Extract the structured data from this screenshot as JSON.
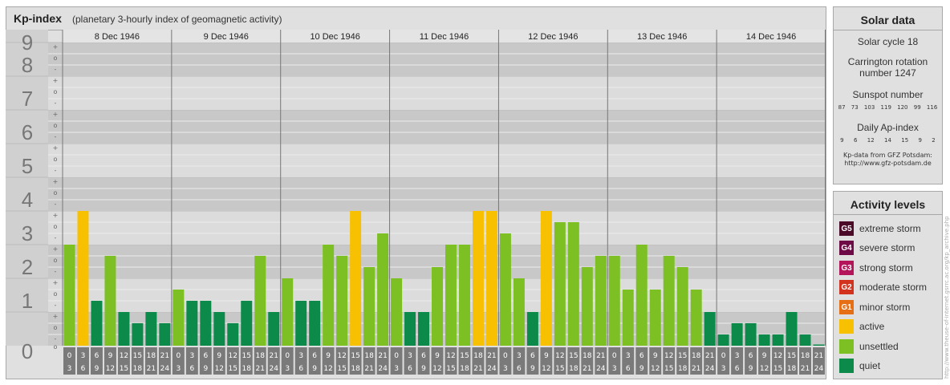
{
  "header": {
    "title": "Kp-index",
    "subtitle": "(planetary 3-hourly index of geomagnetic activity)"
  },
  "solar": {
    "title": "Solar data",
    "cycle": "Solar cycle 18",
    "carrington": "Carrington rotation number 1247",
    "sunspot_title": "Sunspot number",
    "sunspot_values": [
      "87",
      "73",
      "103",
      "119",
      "120",
      "99",
      "116"
    ],
    "ap_title": "Daily Ap-index",
    "ap_values": [
      "9",
      "6",
      "12",
      "14",
      "15",
      "9",
      "2"
    ],
    "source_line1": "Kp-data from GFZ Potsdam:",
    "source_line2": "http://www.gfz-potsdam.de"
  },
  "levels": {
    "title": "Activity levels",
    "items": [
      {
        "badge": "G5",
        "label": "extreme storm",
        "color": "#4b0a28"
      },
      {
        "badge": "G4",
        "label": "severe storm",
        "color": "#6e0a46"
      },
      {
        "badge": "G3",
        "label": "strong storm",
        "color": "#b4145a"
      },
      {
        "badge": "G2",
        "label": "moderate storm",
        "color": "#d2321e"
      },
      {
        "badge": "G1",
        "label": "minor storm",
        "color": "#e66e14"
      },
      {
        "badge": "",
        "label": "active",
        "color": "#f7c000"
      },
      {
        "badge": "",
        "label": "unsettled",
        "color": "#7cc024"
      },
      {
        "badge": "",
        "label": "quiet",
        "color": "#0b8a4a"
      }
    ]
  },
  "watermark": "http://www.theuse-of-internet.gsrrc.ac.org/kp_archive.php",
  "colors": {
    "quiet": "#0b8a4a",
    "unsettled": "#7cc024",
    "active": "#f7c000",
    "band_dark": "#c8c8c8",
    "band_light": "#dcdcdc",
    "axis_box": "#7a7a7a"
  },
  "chart_data": {
    "type": "bar",
    "ylim": [
      0,
      9
    ],
    "y_ticks": [
      "0",
      "1",
      "2",
      "3",
      "4",
      "5",
      "6",
      "7",
      "8",
      "9"
    ],
    "y_minor_labels": [
      "+",
      "o",
      "-"
    ],
    "days": [
      "8 Dec 1946",
      "9 Dec 1946",
      "10 Dec 1946",
      "11 Dec 1946",
      "12 Dec 1946",
      "13 Dec 1946",
      "14 Dec 1946"
    ],
    "interval_labels": [
      [
        "0",
        "3"
      ],
      [
        "3",
        "6"
      ],
      [
        "6",
        "9"
      ],
      [
        "9",
        "12"
      ],
      [
        "12",
        "15"
      ],
      [
        "15",
        "18"
      ],
      [
        "18",
        "21"
      ],
      [
        "21",
        "24"
      ]
    ],
    "values": [
      [
        3.0,
        4.0,
        1.333,
        2.667,
        1.0,
        0.667,
        1.0,
        0.667
      ],
      [
        1.667,
        1.333,
        1.333,
        1.0,
        0.667,
        1.333,
        2.667,
        1.0
      ],
      [
        2.0,
        1.333,
        1.333,
        3.0,
        2.667,
        4.0,
        2.333,
        3.333
      ],
      [
        2.0,
        1.0,
        1.0,
        2.333,
        3.0,
        3.0,
        4.0,
        4.0
      ],
      [
        3.333,
        2.0,
        1.0,
        4.0,
        3.667,
        3.667,
        2.333,
        2.667
      ],
      [
        2.667,
        1.667,
        3.0,
        1.667,
        2.667,
        2.333,
        1.667,
        1.0
      ],
      [
        0.333,
        0.667,
        0.667,
        0.333,
        0.333,
        1.0,
        0.333,
        0.0
      ]
    ]
  }
}
